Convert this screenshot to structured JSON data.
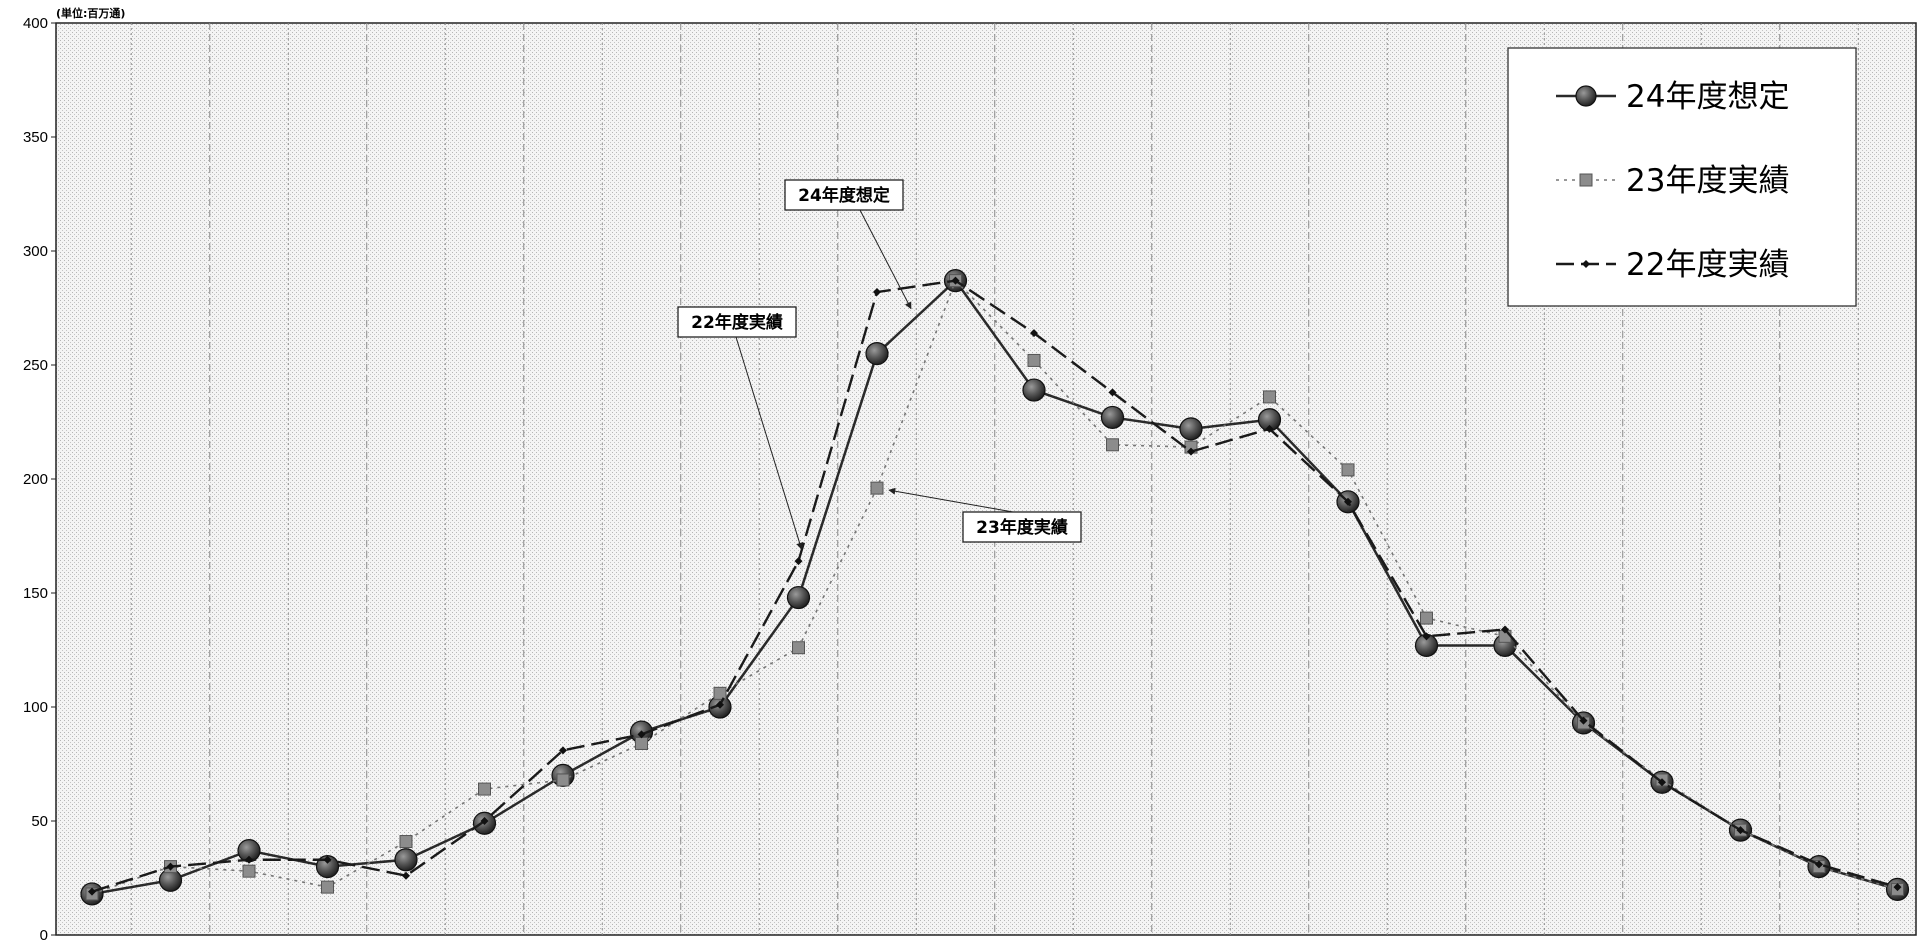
{
  "chart_data": {
    "type": "line",
    "unit_label": "(単位:百万通)",
    "ylim": [
      0,
      400
    ],
    "y_ticks": [
      "0",
      "50",
      "100",
      "150",
      "200",
      "250",
      "300",
      "350",
      "400"
    ],
    "grid": true,
    "legend_position": "top-right",
    "x_count": 24,
    "series": [
      {
        "name": "24年度想定",
        "style": "solid-large-circle",
        "color": "#2a2a2a",
        "values": [
          18,
          24,
          37,
          30,
          33,
          49,
          70,
          89,
          100,
          148,
          255,
          287,
          239,
          227,
          222,
          226,
          190,
          127,
          127,
          93,
          67,
          46,
          30,
          20
        ]
      },
      {
        "name": "23年度実績",
        "style": "dotted-square",
        "color": "#777777",
        "values": [
          18,
          30,
          28,
          21,
          41,
          64,
          68,
          84,
          106,
          126,
          196,
          287,
          252,
          215,
          214,
          236,
          204,
          139,
          131,
          93,
          68,
          46,
          30,
          20
        ]
      },
      {
        "name": "22年度実績",
        "style": "dashed-small-diamond",
        "color": "#1a1a1a",
        "values": [
          19,
          30,
          33,
          33,
          26,
          50,
          81,
          88,
          101,
          164,
          282,
          287,
          264,
          238,
          212,
          222,
          190,
          131,
          134,
          94,
          67,
          46,
          31,
          21
        ]
      }
    ],
    "callouts": [
      {
        "label": "24年度想定",
        "series": 0,
        "point": 10
      },
      {
        "label": "22年度実績",
        "series": 2,
        "point": 9
      },
      {
        "label": "23年度実績",
        "series": 1,
        "point": 10
      }
    ]
  }
}
